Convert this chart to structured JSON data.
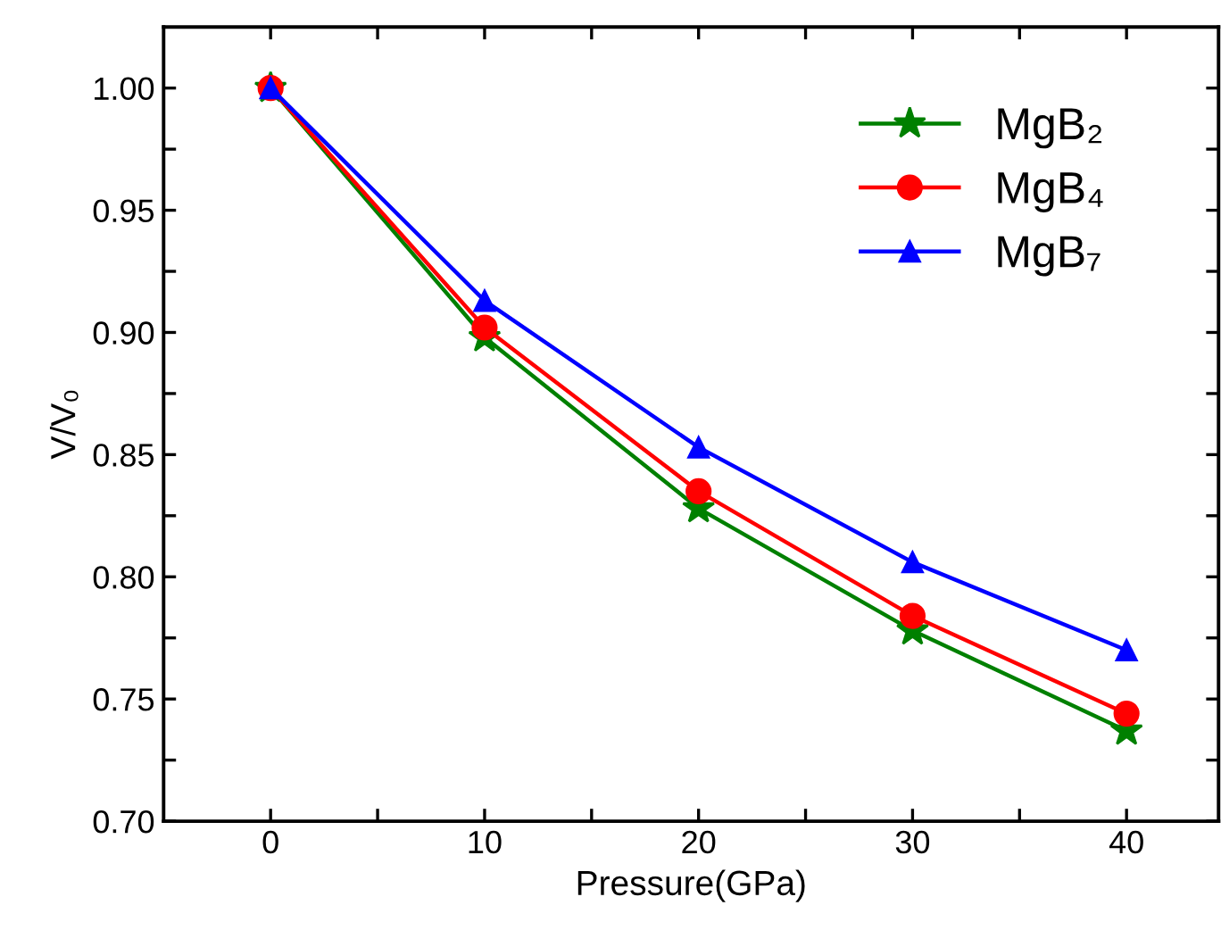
{
  "chart_data": {
    "type": "line",
    "xlabel": "Pressure(GPa)",
    "ylabel": "V/V₀",
    "x": [
      0,
      10,
      20,
      30,
      40
    ],
    "series": [
      {
        "name": "MgB₂",
        "color": "#008000",
        "marker": "star",
        "values": [
          1.0,
          0.898,
          0.828,
          0.778,
          0.737
        ]
      },
      {
        "name": "MgB₄",
        "color": "#ff0000",
        "marker": "circle",
        "values": [
          1.0,
          0.902,
          0.835,
          0.784,
          0.744
        ]
      },
      {
        "name": "MgB₇",
        "color": "#0000ff",
        "marker": "triangle",
        "values": [
          1.0,
          0.913,
          0.853,
          0.806,
          0.77
        ]
      }
    ],
    "xlim": [
      -5,
      44.3
    ],
    "ylim": [
      0.7,
      1.025
    ],
    "xticks": [
      0,
      {
        "value": 5,
        "label": null
      },
      10,
      {
        "value": 15,
        "label": null
      },
      20,
      {
        "value": 25,
        "label": null
      },
      30,
      {
        "value": 35,
        "label": null
      },
      40
    ],
    "yticks": [
      {
        "value": 0.7,
        "label": "0.70"
      },
      {
        "value": 0.725,
        "label": null
      },
      {
        "value": 0.75,
        "label": "0.75"
      },
      {
        "value": 0.775,
        "label": null
      },
      {
        "value": 0.8,
        "label": "0.80"
      },
      {
        "value": 0.825,
        "label": null
      },
      {
        "value": 0.85,
        "label": "0.85"
      },
      {
        "value": 0.875,
        "label": null
      },
      {
        "value": 0.9,
        "label": "0.90"
      },
      {
        "value": 0.925,
        "label": null
      },
      {
        "value": 0.95,
        "label": "0.95"
      },
      {
        "value": 0.975,
        "label": null
      },
      {
        "value": 1.0,
        "label": "1.00"
      }
    ],
    "grid": false,
    "legend": "top right",
    "line_style": "solid"
  }
}
